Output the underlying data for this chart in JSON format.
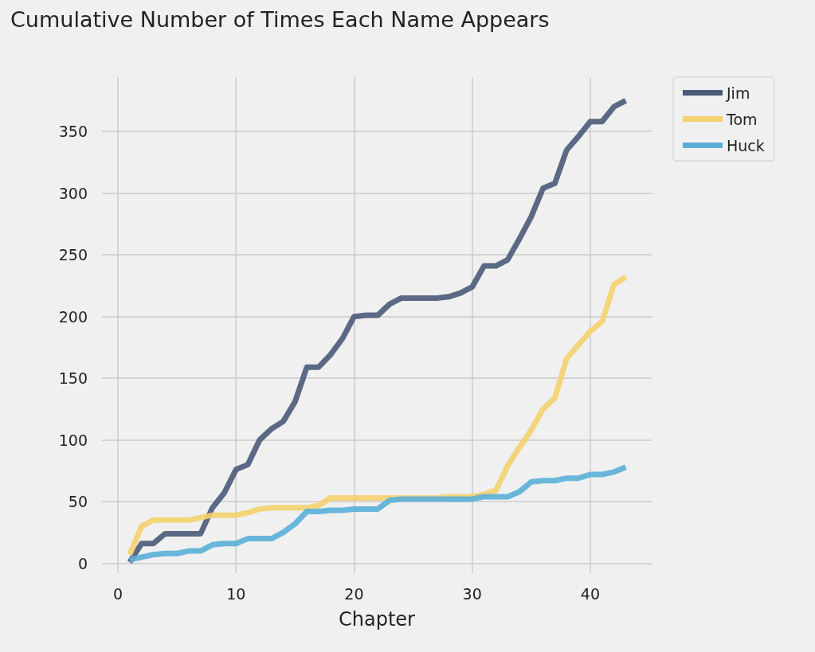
{
  "chart_data": {
    "type": "line",
    "title": "Cumulative Number of Times Each Name Appears",
    "xlabel": "Chapter",
    "x": [
      1,
      2,
      3,
      4,
      5,
      6,
      7,
      8,
      9,
      10,
      11,
      12,
      13,
      14,
      15,
      16,
      17,
      18,
      19,
      20,
      21,
      22,
      23,
      24,
      25,
      26,
      27,
      28,
      29,
      30,
      31,
      32,
      33,
      34,
      35,
      36,
      37,
      38,
      39,
      40,
      41,
      42,
      43
    ],
    "series": [
      {
        "name": "Jim",
        "color": "#4a5a78",
        "values": [
          1,
          16,
          16,
          24,
          24,
          24,
          24,
          45,
          57,
          76,
          80,
          100,
          109,
          115,
          131,
          159,
          159,
          169,
          182,
          200,
          201,
          201,
          210,
          215,
          215,
          215,
          215,
          216,
          219,
          224,
          241,
          241,
          246,
          263,
          281,
          304,
          308,
          335,
          346,
          358,
          358,
          370,
          375
        ]
      },
      {
        "name": "Tom",
        "color": "#f4d26e",
        "values": [
          7,
          30,
          35,
          35,
          35,
          35,
          37,
          39,
          39,
          39,
          41,
          44,
          45,
          45,
          45,
          45,
          47,
          53,
          53,
          53,
          53,
          53,
          53,
          53,
          53,
          53,
          53,
          54,
          54,
          54,
          56,
          59,
          79,
          94,
          108,
          125,
          134,
          166,
          177,
          188,
          196,
          226,
          232
        ]
      },
      {
        "name": "Huck",
        "color": "#5aafd8",
        "values": [
          3,
          5,
          7,
          8,
          8,
          10,
          10,
          15,
          16,
          16,
          20,
          20,
          20,
          25,
          32,
          42,
          42,
          43,
          43,
          44,
          44,
          44,
          51,
          52,
          52,
          52,
          52,
          52,
          52,
          52,
          54,
          54,
          54,
          58,
          66,
          67,
          67,
          69,
          69,
          72,
          72,
          74,
          78
        ]
      }
    ],
    "xlim": [
      -1.35,
      45.2
    ],
    "ylim": [
      -8,
      394
    ],
    "xticks": [
      0,
      10,
      20,
      30,
      40
    ],
    "yticks": [
      0,
      50,
      100,
      150,
      200,
      250,
      300,
      350
    ],
    "grid": true,
    "legend": "top right",
    "marker": "none",
    "line_style": "solid"
  }
}
